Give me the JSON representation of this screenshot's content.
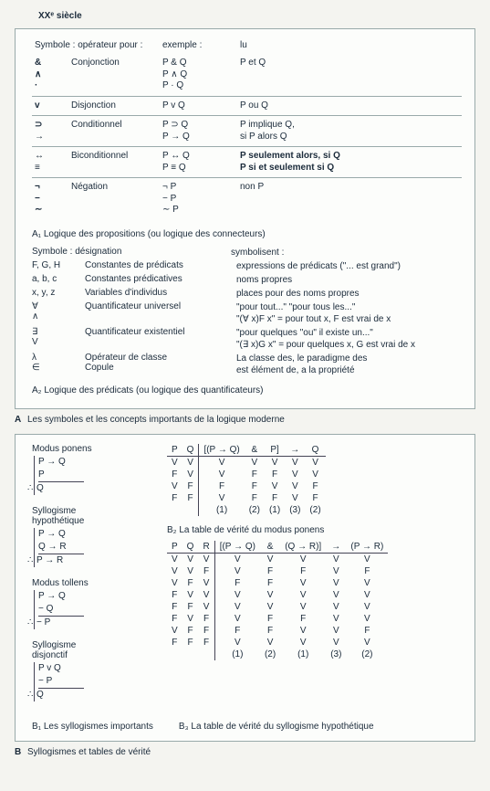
{
  "page_title": "XXᵉ siècle",
  "panelA": {
    "header": {
      "c1": "Symbole : opérateur pour :",
      "c3": "exemple :",
      "c4": "lu"
    },
    "rows": [
      {
        "sym": "&\n∧\n·",
        "name": "Conjonction",
        "ex": "P & Q\nP ∧ Q\nP · Q",
        "lu": "P et Q"
      },
      {
        "sym": "v",
        "name": "Disjonction",
        "ex": "P v Q",
        "lu": "P ou Q"
      },
      {
        "sym": "⊃\n→",
        "name": "Conditionnel",
        "ex": "P ⊃ Q\nP → Q",
        "lu": "P implique Q,\nsi P alors Q"
      },
      {
        "sym": "↔\n≡",
        "name": "Biconditionnel",
        "ex": "P ↔ Q\nP ≡ Q",
        "lu": "P seulement alors, si Q\nP si et seulement si Q"
      },
      {
        "sym": "¬\n−\n∼",
        "name": "Négation",
        "ex": "¬ P\n− P\n∼ P",
        "lu": "non P"
      }
    ],
    "sub1": "A₁ Logique des propositions (ou logique des connecteurs)",
    "header2": {
      "c1": "Symbole : désignation",
      "c3": "symbolisent :"
    },
    "a2": [
      {
        "c1": "F, G, H",
        "c2": "Constantes de prédicats",
        "c3": "expressions de prédicats (\"... est grand\")"
      },
      {
        "c1": "a, b, c",
        "c2": "Constantes prédicatives",
        "c3": "noms propres"
      },
      {
        "c1": "x, y, z",
        "c2": "Variables d'individus",
        "c3": "places pour des noms propres"
      },
      {
        "c1": "∀\n∧",
        "c2": "Quantificateur universel",
        "c3": "\"pour tout...\" \"pour tous les...\"\n\"(∀ x)F x\" = pour tout x, F est vrai de x"
      },
      {
        "c1": "∃\nV",
        "c2": "Quantificateur existentiel",
        "c3": "\"pour quelques \"ou\" il existe un...\"\n\"(∃ x)G x\" = pour quelques x, G est vrai de x"
      },
      {
        "c1": "λ\n∈",
        "c2": "Opérateur de classe\nCopule",
        "c3": "La classe des, le paradigme des\nest élément de, a la propriété"
      }
    ],
    "sub2": "A₂ Logique des prédicats (ou logique des quantificateurs)",
    "caption": {
      "lbl": "A",
      "text": "Les symboles et les concepts importants de la logique moderne"
    }
  },
  "panelB": {
    "syll": [
      {
        "title": "Modus ponens",
        "lines": [
          "P → Q",
          "P"
        ],
        "conc": "Q"
      },
      {
        "title": "Syllogisme\nhypothétique",
        "lines": [
          "P → Q",
          "Q → R"
        ],
        "conc": "P → R"
      },
      {
        "title": "Modus tollens",
        "lines": [
          "P → Q",
          "− Q"
        ],
        "conc": "− P"
      },
      {
        "title": "Syllogisme\ndisjonctif",
        "lines": [
          "P v Q",
          "− P"
        ],
        "conc": "Q"
      }
    ],
    "truth1": {
      "head": [
        "P",
        "Q",
        "[(P → Q)",
        "&",
        "P]",
        "→",
        "Q"
      ],
      "rows": [
        [
          "V",
          "V",
          "V",
          "V",
          "V",
          "V",
          "V"
        ],
        [
          "F",
          "V",
          "V",
          "F",
          "F",
          "V",
          "V"
        ],
        [
          "V",
          "F",
          "F",
          "F",
          "V",
          "V",
          "F"
        ],
        [
          "F",
          "F",
          "V",
          "F",
          "F",
          "V",
          "F"
        ],
        [
          "",
          "",
          "(1)",
          "(2)",
          "(1)",
          "(3)",
          "(2)"
        ]
      ],
      "caption": "B₂ La table de vérité du modus ponens"
    },
    "truth2": {
      "head": [
        "P",
        "Q",
        "R",
        "[(P → Q)",
        "&",
        "(Q → R)]",
        "→",
        "(P → R)"
      ],
      "rows": [
        [
          "V",
          "V",
          "V",
          "V",
          "V",
          "V",
          "V",
          "V"
        ],
        [
          "V",
          "V",
          "F",
          "V",
          "F",
          "F",
          "V",
          "F"
        ],
        [
          "V",
          "F",
          "V",
          "F",
          "F",
          "V",
          "V",
          "V"
        ],
        [
          "F",
          "V",
          "V",
          "V",
          "V",
          "V",
          "V",
          "V"
        ],
        [
          "F",
          "F",
          "V",
          "V",
          "V",
          "V",
          "V",
          "V"
        ],
        [
          "F",
          "V",
          "F",
          "V",
          "F",
          "F",
          "V",
          "V"
        ],
        [
          "V",
          "F",
          "F",
          "F",
          "F",
          "V",
          "V",
          "F"
        ],
        [
          "F",
          "F",
          "F",
          "V",
          "V",
          "V",
          "V",
          "V"
        ],
        [
          "",
          "",
          "",
          "(1)",
          "(2)",
          "(1)",
          "(3)",
          "(2)"
        ]
      ]
    },
    "bottom": {
      "left": "B₁ Les syllogismes importants",
      "right": "B₃ La table de vérité du syllogisme hypothétique"
    },
    "caption": {
      "lbl": "B",
      "text": "Syllogismes et tables de vérité"
    }
  }
}
